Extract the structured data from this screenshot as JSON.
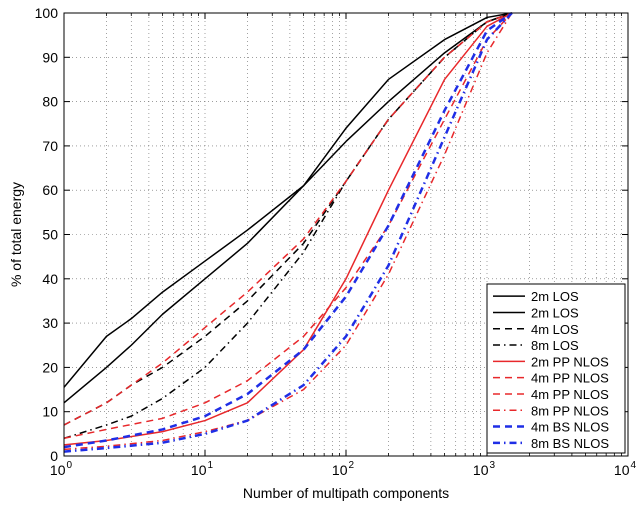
{
  "chart_data": {
    "type": "line",
    "title": "",
    "xlabel": "Number of multipath components",
    "ylabel": "% of total energy",
    "xscale": "log",
    "xlim": [
      1,
      10000
    ],
    "ylim": [
      0,
      100
    ],
    "grid": true,
    "legend_position": "bottom-right",
    "x_ticks": [
      {
        "value": 1,
        "base": "10",
        "exp": "0"
      },
      {
        "value": 10,
        "base": "10",
        "exp": "1"
      },
      {
        "value": 100,
        "base": "10",
        "exp": "2"
      },
      {
        "value": 1000,
        "base": "10",
        "exp": "3"
      },
      {
        "value": 10000,
        "base": "10",
        "exp": "4"
      }
    ],
    "y_ticks": [
      "0",
      "10",
      "20",
      "30",
      "40",
      "50",
      "60",
      "70",
      "80",
      "90",
      "100"
    ],
    "series": [
      {
        "name": "2m LOS",
        "color": "#000000",
        "dash": "solid",
        "width": 1.5,
        "points": [
          [
            1,
            15.5
          ],
          [
            2,
            27
          ],
          [
            3,
            31
          ],
          [
            5,
            37
          ],
          [
            10,
            44
          ],
          [
            20,
            51
          ],
          [
            50,
            61
          ],
          [
            100,
            71
          ],
          [
            200,
            80
          ],
          [
            500,
            91
          ],
          [
            1000,
            98
          ],
          [
            1500,
            100
          ]
        ]
      },
      {
        "name": "2m LOS",
        "color": "#000000",
        "dash": "solid",
        "width": 1.5,
        "points": [
          [
            1,
            12
          ],
          [
            2,
            20
          ],
          [
            3,
            25
          ],
          [
            5,
            32
          ],
          [
            10,
            40
          ],
          [
            20,
            48
          ],
          [
            50,
            61
          ],
          [
            100,
            74
          ],
          [
            200,
            85
          ],
          [
            500,
            94
          ],
          [
            1000,
            99
          ],
          [
            1500,
            100
          ]
        ]
      },
      {
        "name": "4m LOS",
        "color": "#000000",
        "dash": "dash",
        "width": 1.5,
        "points": [
          [
            1,
            7
          ],
          [
            2,
            12
          ],
          [
            3,
            16
          ],
          [
            5,
            20
          ],
          [
            10,
            27
          ],
          [
            20,
            35
          ],
          [
            50,
            48
          ],
          [
            100,
            62
          ],
          [
            200,
            76
          ],
          [
            500,
            90
          ],
          [
            1000,
            98
          ],
          [
            1500,
            100
          ]
        ]
      },
      {
        "name": "8m LOS",
        "color": "#000000",
        "dash": "dashdot",
        "width": 1.5,
        "points": [
          [
            1,
            4
          ],
          [
            2,
            7
          ],
          [
            3,
            9
          ],
          [
            5,
            13
          ],
          [
            10,
            20
          ],
          [
            20,
            30
          ],
          [
            50,
            46
          ],
          [
            100,
            62
          ],
          [
            200,
            76
          ],
          [
            500,
            90
          ],
          [
            1000,
            98
          ],
          [
            1500,
            100
          ]
        ]
      },
      {
        "name": "2m PP NLOS",
        "color": "#e8282b",
        "dash": "solid",
        "width": 1.5,
        "points": [
          [
            1,
            2.5
          ],
          [
            2,
            3.5
          ],
          [
            5,
            5.5
          ],
          [
            10,
            8
          ],
          [
            20,
            12
          ],
          [
            50,
            24
          ],
          [
            100,
            40
          ],
          [
            200,
            60
          ],
          [
            500,
            85
          ],
          [
            1000,
            97
          ],
          [
            1500,
            100
          ]
        ]
      },
      {
        "name": "4m PP NLOS",
        "color": "#e8282b",
        "dash": "dash",
        "width": 1.5,
        "points": [
          [
            1,
            7
          ],
          [
            2,
            12
          ],
          [
            3,
            16
          ],
          [
            5,
            21
          ],
          [
            10,
            29
          ],
          [
            20,
            37
          ],
          [
            50,
            49
          ],
          [
            100,
            62
          ],
          [
            200,
            76
          ],
          [
            500,
            90
          ],
          [
            1000,
            98
          ],
          [
            1500,
            100
          ]
        ]
      },
      {
        "name": "4m PP NLOS",
        "color": "#e8282b",
        "dash": "dash",
        "width": 1.5,
        "points": [
          [
            1,
            4
          ],
          [
            2,
            6
          ],
          [
            5,
            8.5
          ],
          [
            10,
            12
          ],
          [
            20,
            17
          ],
          [
            50,
            27
          ],
          [
            100,
            38
          ],
          [
            200,
            52
          ],
          [
            500,
            76
          ],
          [
            1000,
            94
          ],
          [
            1500,
            100
          ]
        ]
      },
      {
        "name": "8m PP NLOS",
        "color": "#e8282b",
        "dash": "dashdot",
        "width": 1.5,
        "points": [
          [
            1,
            1.5
          ],
          [
            2,
            2.2
          ],
          [
            5,
            3.5
          ],
          [
            10,
            5.5
          ],
          [
            20,
            8
          ],
          [
            50,
            15
          ],
          [
            100,
            25
          ],
          [
            200,
            41
          ],
          [
            500,
            68
          ],
          [
            1000,
            91
          ],
          [
            1500,
            100
          ]
        ]
      },
      {
        "name": "4m BS NLOS",
        "color": "#1f2ee6",
        "dash": "dash",
        "width": 2.5,
        "points": [
          [
            1,
            2
          ],
          [
            2,
            3.5
          ],
          [
            5,
            6
          ],
          [
            10,
            9
          ],
          [
            20,
            14
          ],
          [
            50,
            24
          ],
          [
            100,
            36
          ],
          [
            200,
            52
          ],
          [
            500,
            78
          ],
          [
            1000,
            96
          ],
          [
            1500,
            100
          ]
        ]
      },
      {
        "name": "8m BS NLOS",
        "color": "#1f2ee6",
        "dash": "dashdot",
        "width": 2.5,
        "points": [
          [
            1,
            1
          ],
          [
            2,
            1.8
          ],
          [
            5,
            3
          ],
          [
            10,
            5
          ],
          [
            20,
            8
          ],
          [
            50,
            16
          ],
          [
            100,
            27
          ],
          [
            200,
            43
          ],
          [
            500,
            72
          ],
          [
            1000,
            94
          ],
          [
            1500,
            100
          ]
        ]
      }
    ]
  }
}
